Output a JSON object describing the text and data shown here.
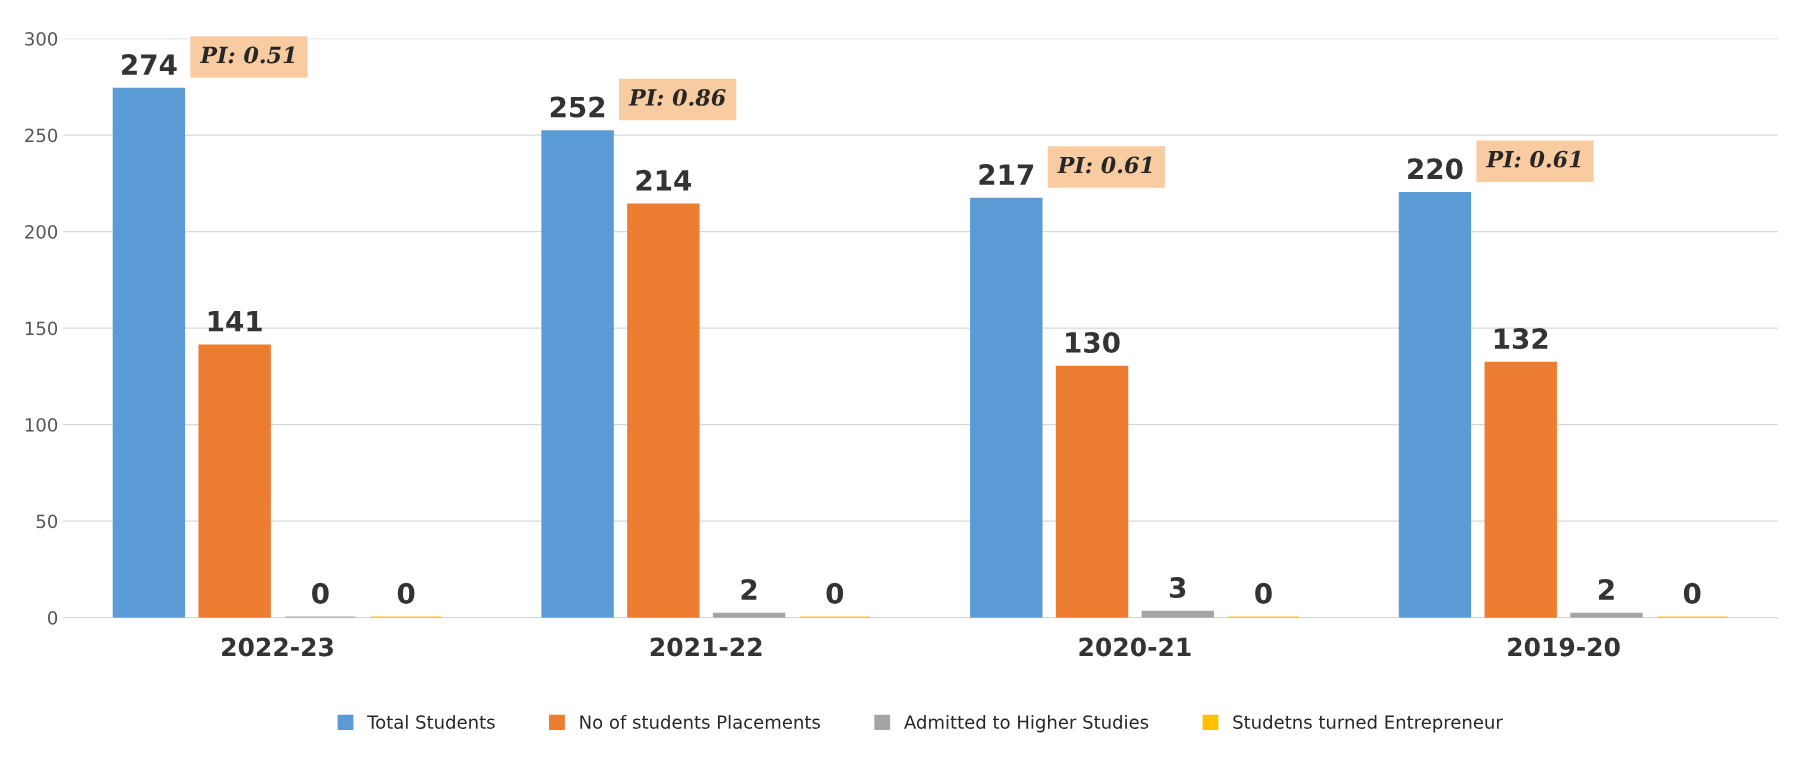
{
  "chart_data": {
    "type": "bar",
    "categories": [
      "2022-23",
      "2021-22",
      "2020-21",
      "2019-20"
    ],
    "series": [
      {
        "name": "Total Students",
        "color": "#5b9bd5",
        "values": [
          274,
          252,
          217,
          220
        ]
      },
      {
        "name": "No of students Placements",
        "color": "#ed7d31",
        "values": [
          141,
          214,
          130,
          132
        ]
      },
      {
        "name": "Admitted to Higher Studies",
        "color": "#a5a5a5",
        "values": [
          0,
          2,
          3,
          2
        ]
      },
      {
        "name": "Studetns turned Entrepreneur",
        "color": "#ffc000",
        "values": [
          0,
          0,
          0,
          0
        ]
      }
    ],
    "annotations": [
      "PI: 0.51",
      "PI: 0.86",
      "PI: 0.61",
      "PI: 0.61"
    ],
    "ylim": [
      0,
      300
    ],
    "yticks": [
      0,
      50,
      100,
      150,
      200,
      250,
      300
    ],
    "grid": "y",
    "legend": "bottom",
    "data_labels": true
  }
}
